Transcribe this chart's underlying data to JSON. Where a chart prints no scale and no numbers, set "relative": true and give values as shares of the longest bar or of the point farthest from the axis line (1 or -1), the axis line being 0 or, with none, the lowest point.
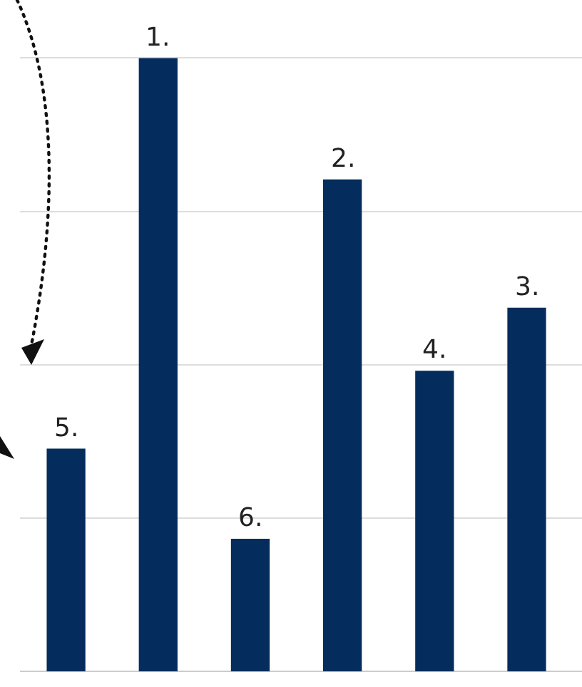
{
  "chart_data": {
    "type": "bar",
    "relative": true,
    "categories": [
      null,
      null,
      null,
      null,
      null,
      null
    ],
    "values": [
      0.363,
      1,
      0.216,
      0.802,
      0.49,
      0.593
    ],
    "annotations": [
      "5.",
      "1.",
      "6.",
      "2.",
      "4.",
      "3."
    ],
    "color": "#042c5c",
    "grid": "y",
    "legend": false
  }
}
